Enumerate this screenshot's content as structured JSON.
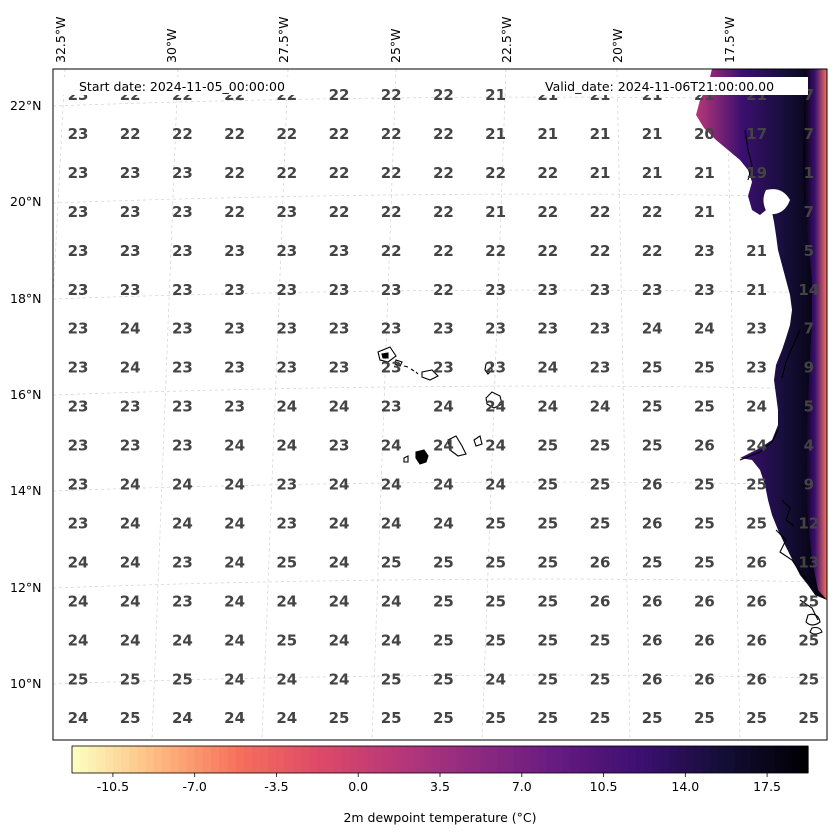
{
  "header": {
    "start_date": "Start date: 2024-11-05_00:00:00",
    "valid_date": "Valid_date: 2024-11-06T21:00:00.00"
  },
  "axes": {
    "lon_labels": [
      "32.5°W",
      "30°W",
      "27.5°W",
      "25°W",
      "22.5°W",
      "20°W",
      "17.5°W"
    ],
    "lat_labels": [
      "22°N",
      "20°N",
      "18°N",
      "16°N",
      "14°N",
      "12°N",
      "10°N"
    ]
  },
  "colorbar": {
    "label": "2m dewpoint temperature (°C)",
    "ticks": [
      "-10.5",
      "-7.0",
      "-3.5",
      "0.0",
      "3.5",
      "7.0",
      "10.5",
      "14.0",
      "17.5"
    ],
    "range": [
      -12.25,
      19.25
    ],
    "colormap": "magma_r",
    "colors": [
      "#fcfdbf",
      "#feba80",
      "#f7705c",
      "#de4968",
      "#b73779",
      "#8c2981",
      "#641a80",
      "#3b0f70",
      "#140e36",
      "#000004"
    ]
  },
  "grid": {
    "rows": [
      [
        "23",
        "22",
        "22",
        "22",
        "22",
        "22",
        "22",
        "22",
        "21",
        "21",
        "21",
        "21",
        "21",
        "21",
        "7"
      ],
      [
        "23",
        "22",
        "22",
        "22",
        "22",
        "22",
        "22",
        "22",
        "21",
        "21",
        "21",
        "21",
        "20",
        "17",
        "7"
      ],
      [
        "23",
        "23",
        "23",
        "22",
        "22",
        "22",
        "22",
        "22",
        "22",
        "22",
        "21",
        "21",
        "21",
        "19",
        "1"
      ],
      [
        "23",
        "23",
        "23",
        "22",
        "23",
        "22",
        "22",
        "22",
        "21",
        "22",
        "22",
        "22",
        "21",
        "",
        "7"
      ],
      [
        "23",
        "23",
        "23",
        "23",
        "23",
        "23",
        "22",
        "22",
        "22",
        "22",
        "22",
        "22",
        "23",
        "21",
        "5"
      ],
      [
        "23",
        "23",
        "23",
        "23",
        "23",
        "23",
        "23",
        "22",
        "23",
        "23",
        "23",
        "23",
        "23",
        "21",
        "14"
      ],
      [
        "23",
        "24",
        "23",
        "23",
        "23",
        "23",
        "23",
        "23",
        "23",
        "23",
        "23",
        "24",
        "24",
        "23",
        "7"
      ],
      [
        "23",
        "24",
        "23",
        "23",
        "23",
        "23",
        "23",
        "23",
        "23",
        "24",
        "23",
        "25",
        "25",
        "23",
        "9"
      ],
      [
        "23",
        "23",
        "23",
        "23",
        "24",
        "24",
        "23",
        "24",
        "24",
        "24",
        "24",
        "25",
        "25",
        "24",
        "5"
      ],
      [
        "23",
        "23",
        "23",
        "24",
        "24",
        "23",
        "24",
        "24",
        "24",
        "25",
        "25",
        "25",
        "26",
        "24",
        "4"
      ],
      [
        "23",
        "24",
        "24",
        "24",
        "23",
        "24",
        "24",
        "24",
        "24",
        "25",
        "25",
        "26",
        "25",
        "25",
        "9"
      ],
      [
        "23",
        "24",
        "24",
        "24",
        "23",
        "24",
        "24",
        "24",
        "25",
        "25",
        "25",
        "26",
        "25",
        "25",
        "12"
      ],
      [
        "24",
        "24",
        "23",
        "24",
        "25",
        "24",
        "25",
        "25",
        "25",
        "25",
        "26",
        "25",
        "25",
        "26",
        "13"
      ],
      [
        "24",
        "24",
        "23",
        "24",
        "24",
        "24",
        "24",
        "25",
        "25",
        "25",
        "26",
        "26",
        "26",
        "26",
        "25"
      ],
      [
        "24",
        "24",
        "24",
        "24",
        "25",
        "24",
        "24",
        "25",
        "25",
        "25",
        "25",
        "26",
        "26",
        "26",
        "25"
      ],
      [
        "25",
        "25",
        "25",
        "24",
        "24",
        "24",
        "25",
        "25",
        "24",
        "25",
        "25",
        "26",
        "26",
        "26",
        "25"
      ],
      [
        "24",
        "25",
        "24",
        "24",
        "24",
        "25",
        "25",
        "25",
        "25",
        "25",
        "25",
        "25",
        "25",
        "25",
        "25"
      ]
    ]
  }
}
